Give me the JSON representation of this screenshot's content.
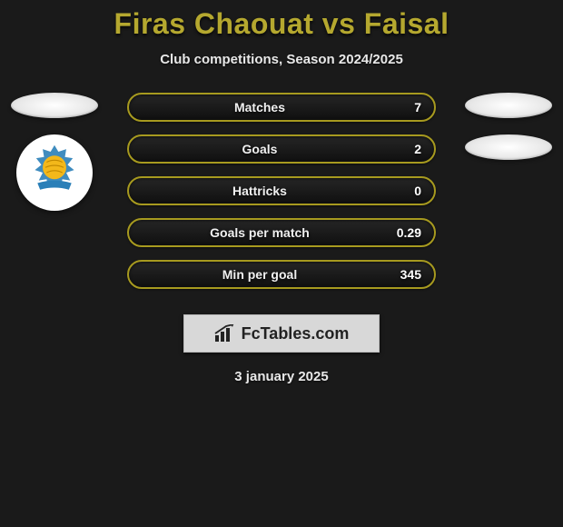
{
  "header": {
    "title": "Firas Chaouat vs Faisal",
    "title_color": "#b5a82f",
    "subtitle": "Club competitions, Season 2024/2025"
  },
  "background_color": "#1a1a1a",
  "left_side": {
    "top_placeholder": true,
    "club_badge": {
      "ring_color": "#2a7fb8",
      "ball_color": "#f3b81a",
      "banner_color": "#2a7fb8"
    }
  },
  "right_side": {
    "placeholders": 2
  },
  "stat_bars": [
    {
      "label": "Matches",
      "value": "7",
      "border_color": "#a79a1f"
    },
    {
      "label": "Goals",
      "value": "2",
      "border_color": "#a79a1f"
    },
    {
      "label": "Hattricks",
      "value": "0",
      "border_color": "#a79a1f"
    },
    {
      "label": "Goals per match",
      "value": "0.29",
      "border_color": "#a79a1f"
    },
    {
      "label": "Min per goal",
      "value": "345",
      "border_color": "#a79a1f"
    }
  ],
  "footer": {
    "logo_text": "FcTables.com",
    "date": "3 january 2025"
  }
}
